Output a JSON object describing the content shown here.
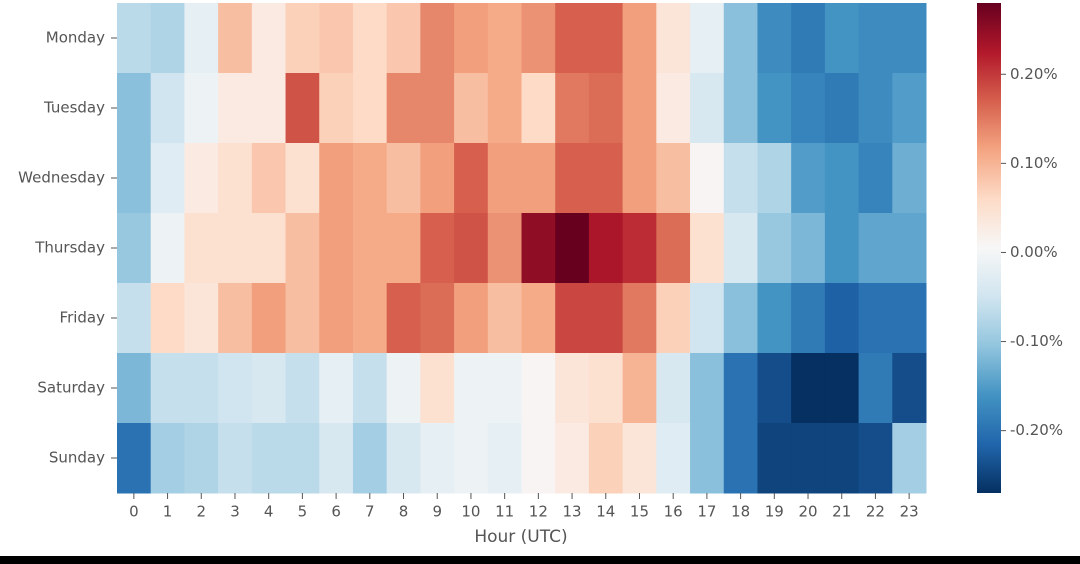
{
  "chart_data": {
    "type": "heatmap",
    "xlabel": "Hour (UTC)",
    "x_categories": [
      "0",
      "1",
      "2",
      "3",
      "4",
      "5",
      "6",
      "7",
      "8",
      "9",
      "10",
      "11",
      "12",
      "13",
      "14",
      "15",
      "16",
      "17",
      "18",
      "19",
      "20",
      "21",
      "22",
      "23"
    ],
    "y_categories": [
      "Monday",
      "Tuesday",
      "Wednesday",
      "Thursday",
      "Friday",
      "Saturday",
      "Sunday"
    ],
    "values": [
      [
        -0.07,
        -0.08,
        -0.02,
        0.09,
        0.03,
        0.07,
        0.08,
        0.06,
        0.08,
        0.14,
        0.12,
        0.11,
        0.13,
        0.17,
        0.17,
        0.12,
        0.04,
        -0.02,
        -0.11,
        -0.17,
        -0.19,
        -0.16,
        -0.17,
        -0.17
      ],
      [
        -0.11,
        -0.05,
        -0.01,
        0.03,
        0.03,
        0.18,
        0.07,
        0.06,
        0.14,
        0.14,
        0.09,
        0.11,
        0.06,
        0.15,
        0.16,
        0.12,
        0.03,
        -0.04,
        -0.11,
        -0.16,
        -0.18,
        -0.19,
        -0.17,
        -0.15
      ],
      [
        -0.11,
        -0.03,
        0.03,
        0.05,
        0.08,
        0.05,
        0.12,
        0.11,
        0.09,
        0.12,
        0.17,
        0.12,
        0.12,
        0.17,
        0.17,
        0.12,
        0.09,
        0.01,
        -0.06,
        -0.08,
        -0.15,
        -0.16,
        -0.18,
        -0.13
      ],
      [
        -0.1,
        -0.01,
        0.05,
        0.05,
        0.05,
        0.09,
        0.12,
        0.11,
        0.11,
        0.17,
        0.18,
        0.13,
        0.25,
        0.28,
        0.23,
        0.21,
        0.16,
        0.05,
        -0.04,
        -0.1,
        -0.12,
        -0.16,
        -0.14,
        -0.14
      ],
      [
        -0.06,
        0.06,
        0.04,
        0.09,
        0.12,
        0.09,
        0.12,
        0.11,
        0.17,
        0.16,
        0.12,
        0.09,
        0.11,
        0.19,
        0.19,
        0.15,
        0.07,
        -0.05,
        -0.11,
        -0.16,
        -0.19,
        -0.22,
        -0.2,
        -0.2
      ],
      [
        -0.12,
        -0.06,
        -0.06,
        -0.05,
        -0.04,
        -0.06,
        -0.02,
        -0.06,
        -0.01,
        0.05,
        -0.01,
        -0.01,
        0.01,
        0.04,
        0.05,
        0.1,
        -0.04,
        -0.11,
        -0.2,
        -0.24,
        -0.27,
        -0.28,
        -0.19,
        -0.24
      ],
      [
        -0.2,
        -0.09,
        -0.08,
        -0.06,
        -0.07,
        -0.07,
        -0.04,
        -0.09,
        -0.04,
        -0.02,
        -0.01,
        -0.02,
        0.01,
        0.03,
        0.07,
        0.04,
        -0.03,
        -0.11,
        -0.2,
        -0.25,
        -0.25,
        -0.25,
        -0.24,
        -0.09
      ]
    ],
    "colormap": [
      "#053061",
      "#2166ac",
      "#4393c3",
      "#92c5de",
      "#d1e5f0",
      "#f7f7f7",
      "#fddbc7",
      "#f4a582",
      "#d6604d",
      "#b2182b",
      "#67001f"
    ],
    "clim": [
      -0.27,
      0.28
    ],
    "cticks": [
      {
        "value": -0.2,
        "label": "-0.20%"
      },
      {
        "value": -0.1,
        "label": "-0.10%"
      },
      {
        "value": 0,
        "label": "0.00%"
      },
      {
        "value": 0.1,
        "label": "0.10%"
      },
      {
        "value": 0.2,
        "label": "0.20%"
      }
    ]
  }
}
